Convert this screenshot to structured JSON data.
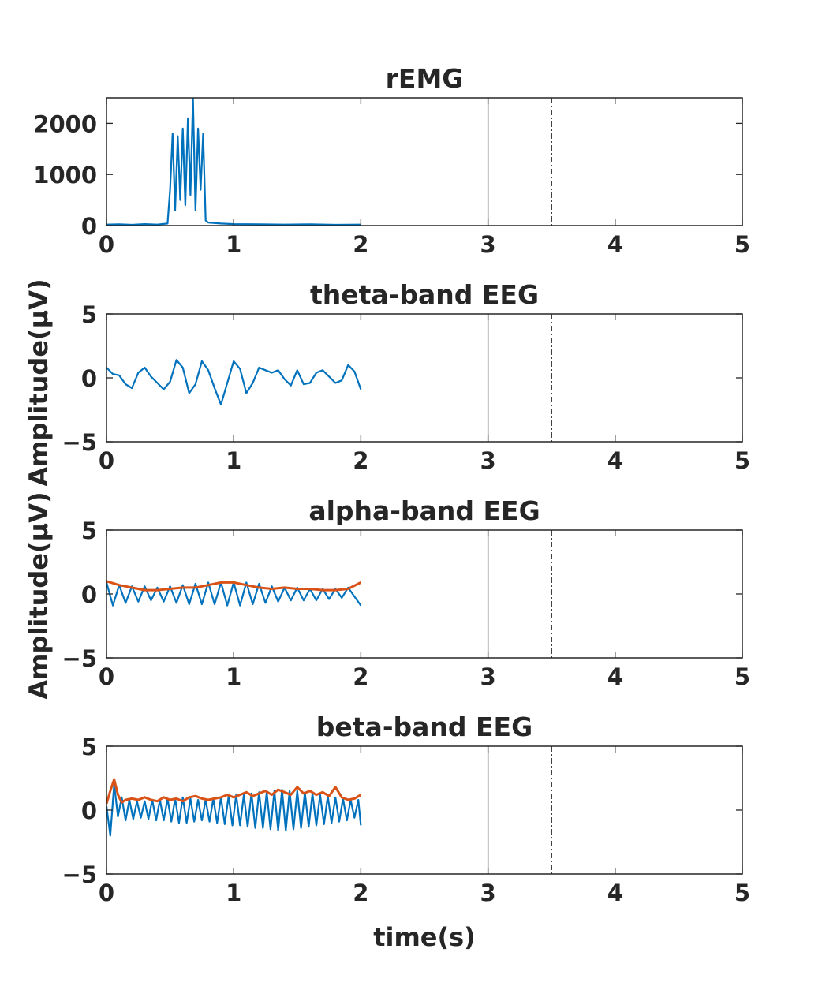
{
  "figure": {
    "xlabel": "time(s)",
    "ylabel_upper": "Amplitude(μV)",
    "ylabel_lower": "Amplitude(μV)"
  },
  "chart_data": [
    {
      "type": "line",
      "title": "rEMG",
      "xlim": [
        0,
        5
      ],
      "ylim": [
        0,
        2500
      ],
      "xticks": [
        "0",
        "1",
        "2",
        "3",
        "4",
        "5"
      ],
      "yticks": [
        {
          "v": 0,
          "t": "0"
        },
        {
          "v": 1000,
          "t": "1000"
        },
        {
          "v": 2000,
          "t": "2000"
        }
      ],
      "vlines": [
        {
          "x": 3,
          "style": "solid"
        },
        {
          "x": 3.5,
          "style": "dashdot"
        }
      ],
      "series": [
        {
          "color": "#0072BD",
          "x": [
            0,
            0.1,
            0.2,
            0.3,
            0.4,
            0.48,
            0.5,
            0.52,
            0.54,
            0.56,
            0.58,
            0.6,
            0.62,
            0.64,
            0.66,
            0.68,
            0.7,
            0.72,
            0.74,
            0.76,
            0.78,
            0.8,
            0.9,
            1.0,
            1.2,
            1.4,
            1.6,
            1.8,
            2.0
          ],
          "y": [
            20,
            25,
            15,
            30,
            20,
            40,
            700,
            1800,
            300,
            1750,
            500,
            1900,
            400,
            2100,
            600,
            2500,
            300,
            1900,
            700,
            1800,
            100,
            60,
            40,
            30,
            25,
            20,
            25,
            15,
            20
          ]
        }
      ]
    },
    {
      "type": "line",
      "title": "theta-band EEG",
      "xlim": [
        0,
        5
      ],
      "ylim": [
        -5,
        5
      ],
      "xticks": [
        "0",
        "1",
        "2",
        "3",
        "4",
        "5"
      ],
      "yticks": [
        {
          "v": -5,
          "t": "−5"
        },
        {
          "v": 0,
          "t": "0"
        },
        {
          "v": 5,
          "t": "5"
        }
      ],
      "vlines": [
        {
          "x": 3,
          "style": "solid"
        },
        {
          "x": 3.5,
          "style": "dashdot"
        }
      ],
      "series": [
        {
          "color": "#0072BD",
          "x": [
            0,
            0.05,
            0.1,
            0.15,
            0.2,
            0.25,
            0.3,
            0.35,
            0.4,
            0.45,
            0.5,
            0.55,
            0.6,
            0.65,
            0.7,
            0.75,
            0.8,
            0.85,
            0.9,
            0.95,
            1.0,
            1.05,
            1.1,
            1.15,
            1.2,
            1.25,
            1.3,
            1.35,
            1.4,
            1.45,
            1.5,
            1.55,
            1.6,
            1.65,
            1.7,
            1.75,
            1.8,
            1.85,
            1.9,
            1.95,
            2.0
          ],
          "y": [
            0.8,
            0.3,
            0.2,
            -0.5,
            -0.8,
            0.4,
            0.8,
            0.1,
            -0.4,
            -0.9,
            -0.3,
            1.4,
            0.8,
            -1.2,
            -0.5,
            1.3,
            0.6,
            -0.8,
            -2.1,
            -0.4,
            1.3,
            0.7,
            -1.2,
            -0.4,
            0.8,
            0.6,
            0.4,
            0.6,
            -0.1,
            -0.6,
            0.6,
            -0.5,
            -0.4,
            0.4,
            0.6,
            0.1,
            -0.4,
            -0.2,
            1.0,
            0.5,
            -0.9
          ]
        }
      ]
    },
    {
      "type": "line",
      "title": "alpha-band EEG",
      "xlim": [
        0,
        5
      ],
      "ylim": [
        -5,
        5
      ],
      "xticks": [
        "0",
        "1",
        "2",
        "3",
        "4",
        "5"
      ],
      "yticks": [
        {
          "v": -5,
          "t": "−5"
        },
        {
          "v": 0,
          "t": "0"
        },
        {
          "v": 5,
          "t": "5"
        }
      ],
      "vlines": [
        {
          "x": 3,
          "style": "solid"
        },
        {
          "x": 3.5,
          "style": "dashdot"
        }
      ],
      "series": [
        {
          "color": "#0072BD",
          "x": [
            0,
            0.05,
            0.1,
            0.15,
            0.2,
            0.25,
            0.3,
            0.35,
            0.4,
            0.45,
            0.5,
            0.55,
            0.6,
            0.65,
            0.7,
            0.75,
            0.8,
            0.85,
            0.9,
            0.95,
            1.0,
            1.05,
            1.1,
            1.15,
            1.2,
            1.25,
            1.3,
            1.35,
            1.4,
            1.45,
            1.5,
            1.55,
            1.6,
            1.65,
            1.7,
            1.75,
            1.8,
            1.85,
            1.9,
            1.95,
            2.0
          ],
          "y": [
            0.9,
            -0.9,
            0.7,
            -0.7,
            0.6,
            -0.6,
            0.6,
            -0.5,
            0.5,
            -0.6,
            0.6,
            -0.7,
            0.7,
            -0.8,
            0.8,
            -0.8,
            0.9,
            -0.8,
            0.9,
            -0.9,
            0.9,
            -0.9,
            0.9,
            -0.8,
            0.8,
            -0.7,
            0.6,
            -0.6,
            0.5,
            -0.5,
            0.5,
            -0.5,
            0.4,
            -0.5,
            0.4,
            -0.4,
            0.4,
            -0.3,
            0.5,
            -0.2,
            -0.9
          ]
        },
        {
          "color": "#D95319",
          "x": [
            0,
            0.1,
            0.2,
            0.3,
            0.4,
            0.5,
            0.6,
            0.7,
            0.8,
            0.9,
            1.0,
            1.1,
            1.2,
            1.3,
            1.4,
            1.5,
            1.6,
            1.7,
            1.8,
            1.9,
            2.0
          ],
          "y": [
            1.0,
            0.7,
            0.5,
            0.3,
            0.3,
            0.4,
            0.5,
            0.5,
            0.7,
            0.9,
            0.9,
            0.7,
            0.5,
            0.4,
            0.5,
            0.4,
            0.4,
            0.3,
            0.3,
            0.4,
            0.9
          ]
        }
      ]
    },
    {
      "type": "line",
      "title": "beta-band EEG",
      "xlim": [
        0,
        5
      ],
      "ylim": [
        -5,
        5
      ],
      "xticks": [
        "0",
        "1",
        "2",
        "3",
        "4",
        "5"
      ],
      "yticks": [
        {
          "v": -5,
          "t": "−5"
        },
        {
          "v": 0,
          "t": "0"
        },
        {
          "v": 5,
          "t": "5"
        }
      ],
      "vlines": [
        {
          "x": 3,
          "style": "solid"
        },
        {
          "x": 3.5,
          "style": "dashdot"
        }
      ],
      "series": [
        {
          "color": "#0072BD",
          "x": [
            0,
            0.03,
            0.06,
            0.09,
            0.12,
            0.15,
            0.18,
            0.21,
            0.24,
            0.27,
            0.3,
            0.33,
            0.36,
            0.39,
            0.42,
            0.45,
            0.48,
            0.51,
            0.54,
            0.57,
            0.6,
            0.63,
            0.66,
            0.69,
            0.72,
            0.75,
            0.78,
            0.81,
            0.84,
            0.87,
            0.9,
            0.93,
            0.96,
            0.99,
            1.02,
            1.05,
            1.08,
            1.11,
            1.14,
            1.17,
            1.2,
            1.23,
            1.26,
            1.29,
            1.32,
            1.35,
            1.38,
            1.41,
            1.44,
            1.47,
            1.5,
            1.53,
            1.56,
            1.59,
            1.62,
            1.65,
            1.68,
            1.71,
            1.74,
            1.77,
            1.8,
            1.83,
            1.86,
            1.89,
            1.92,
            1.95,
            1.98,
            2.0
          ],
          "y": [
            0.3,
            -2.0,
            2.0,
            -0.5,
            1.0,
            -0.8,
            0.8,
            -0.7,
            0.7,
            -0.6,
            0.7,
            -0.7,
            0.8,
            -0.8,
            0.8,
            -0.8,
            0.9,
            -0.9,
            0.9,
            -1.0,
            1.0,
            -1.0,
            0.9,
            -0.9,
            0.8,
            -0.8,
            0.8,
            -0.9,
            0.9,
            -1.0,
            1.0,
            -1.1,
            1.1,
            -1.2,
            1.2,
            -1.2,
            1.2,
            -1.3,
            1.3,
            -1.4,
            1.4,
            -1.4,
            1.4,
            -1.5,
            1.5,
            -1.6,
            1.6,
            -1.6,
            1.5,
            -1.5,
            1.5,
            -1.4,
            1.4,
            -1.3,
            1.3,
            -1.2,
            1.2,
            -1.1,
            1.1,
            -1.0,
            1.0,
            -0.9,
            0.9,
            -0.8,
            0.8,
            -0.6,
            0.8,
            -1.2
          ]
        },
        {
          "color": "#D95319",
          "x": [
            0,
            0.03,
            0.06,
            0.09,
            0.12,
            0.15,
            0.2,
            0.25,
            0.3,
            0.35,
            0.4,
            0.45,
            0.5,
            0.55,
            0.6,
            0.65,
            0.7,
            0.75,
            0.8,
            0.85,
            0.9,
            0.95,
            1.0,
            1.05,
            1.1,
            1.15,
            1.2,
            1.25,
            1.3,
            1.35,
            1.4,
            1.45,
            1.5,
            1.55,
            1.6,
            1.65,
            1.7,
            1.75,
            1.8,
            1.85,
            1.9,
            1.95,
            2.0
          ],
          "y": [
            0.5,
            1.5,
            2.4,
            1.2,
            0.6,
            0.8,
            0.9,
            0.8,
            1.0,
            0.8,
            0.7,
            1.0,
            0.8,
            0.9,
            0.7,
            1.0,
            1.1,
            0.9,
            0.8,
            0.9,
            1.0,
            1.2,
            1.0,
            1.2,
            1.4,
            1.1,
            1.3,
            1.5,
            1.2,
            1.6,
            1.4,
            1.2,
            1.8,
            1.3,
            1.5,
            1.2,
            1.4,
            1.1,
            1.8,
            1.0,
            0.8,
            0.9,
            1.2
          ]
        }
      ]
    }
  ]
}
